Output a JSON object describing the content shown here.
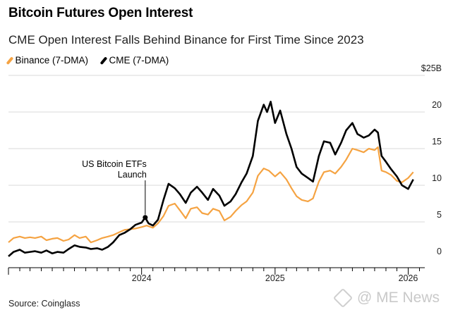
{
  "title": "Bitcoin Futures Open Interest",
  "subtitle": "CME Open Interest Falls Behind Binance for First Time Since 2023",
  "source": "Source: Coinglass",
  "watermark": "@ ME News",
  "colors": {
    "binance": "#F5A342",
    "cme": "#000000",
    "grid": "#d9d9d9"
  },
  "chart_data": {
    "type": "line",
    "title": "Bitcoin Futures Open Interest",
    "ylabel": "",
    "y_unit": "$25B",
    "ylim": [
      0,
      25
    ],
    "y_ticks": [
      0,
      5,
      10,
      15,
      20,
      25
    ],
    "y_tick_labels": [
      "0",
      "5",
      "10",
      "15",
      "20",
      "$25B"
    ],
    "xlim": [
      "2023-01-01",
      "2026-01-31"
    ],
    "x_ticks": [
      "2024-01-01",
      "2025-01-01",
      "2026-01-01"
    ],
    "x_tick_labels": [
      "2024",
      "2025",
      "2026"
    ],
    "grid": true,
    "legend_placement": "top-left",
    "annotation": {
      "text_lines": [
        "US Bitcoin ETFs",
        "Launch"
      ],
      "date": "2024-01-11",
      "value": 5.6
    },
    "series": [
      {
        "name": "Binance (7-DMA)",
        "color": "#F5A342",
        "points": [
          [
            "2023-01-01",
            2.2
          ],
          [
            "2023-01-15",
            2.8
          ],
          [
            "2023-02-01",
            3.0
          ],
          [
            "2023-02-15",
            2.8
          ],
          [
            "2023-03-01",
            2.9
          ],
          [
            "2023-03-15",
            2.8
          ],
          [
            "2023-04-01",
            3.0
          ],
          [
            "2023-04-15",
            2.5
          ],
          [
            "2023-05-01",
            2.7
          ],
          [
            "2023-05-15",
            2.8
          ],
          [
            "2023-06-01",
            2.4
          ],
          [
            "2023-06-15",
            2.6
          ],
          [
            "2023-07-01",
            3.2
          ],
          [
            "2023-07-15",
            2.8
          ],
          [
            "2023-08-01",
            3.0
          ],
          [
            "2023-08-15",
            2.2
          ],
          [
            "2023-09-01",
            2.5
          ],
          [
            "2023-09-15",
            2.8
          ],
          [
            "2023-10-01",
            3.0
          ],
          [
            "2023-10-15",
            3.2
          ],
          [
            "2023-11-01",
            3.6
          ],
          [
            "2023-11-15",
            3.9
          ],
          [
            "2023-12-01",
            4.0
          ],
          [
            "2023-12-15",
            4.1
          ],
          [
            "2024-01-01",
            4.3
          ],
          [
            "2024-01-15",
            4.5
          ],
          [
            "2024-02-01",
            4.2
          ],
          [
            "2024-02-15",
            4.8
          ],
          [
            "2024-03-01",
            5.8
          ],
          [
            "2024-03-15",
            7.2
          ],
          [
            "2024-04-01",
            7.5
          ],
          [
            "2024-04-15",
            6.6
          ],
          [
            "2024-05-01",
            5.5
          ],
          [
            "2024-05-15",
            6.8
          ],
          [
            "2024-06-01",
            7.0
          ],
          [
            "2024-06-15",
            6.2
          ],
          [
            "2024-07-01",
            6.0
          ],
          [
            "2024-07-15",
            6.8
          ],
          [
            "2024-08-01",
            6.5
          ],
          [
            "2024-08-15",
            5.2
          ],
          [
            "2024-09-01",
            5.7
          ],
          [
            "2024-09-15",
            6.5
          ],
          [
            "2024-10-01",
            7.3
          ],
          [
            "2024-10-15",
            7.8
          ],
          [
            "2024-11-01",
            9.0
          ],
          [
            "2024-11-15",
            11.3
          ],
          [
            "2024-12-01",
            12.3
          ],
          [
            "2024-12-15",
            12.0
          ],
          [
            "2025-01-01",
            11.2
          ],
          [
            "2025-01-15",
            11.8
          ],
          [
            "2025-02-01",
            10.8
          ],
          [
            "2025-02-15",
            9.6
          ],
          [
            "2025-03-01",
            8.5
          ],
          [
            "2025-03-15",
            8.0
          ],
          [
            "2025-04-01",
            7.8
          ],
          [
            "2025-04-15",
            8.2
          ],
          [
            "2025-05-01",
            10.5
          ],
          [
            "2025-05-15",
            11.8
          ],
          [
            "2025-06-01",
            12.0
          ],
          [
            "2025-06-15",
            11.6
          ],
          [
            "2025-07-01",
            12.5
          ],
          [
            "2025-07-15",
            13.5
          ],
          [
            "2025-08-01",
            15.0
          ],
          [
            "2025-08-15",
            14.8
          ],
          [
            "2025-09-01",
            14.5
          ],
          [
            "2025-09-15",
            15.0
          ],
          [
            "2025-10-01",
            14.8
          ],
          [
            "2025-10-10",
            15.2
          ],
          [
            "2025-10-20",
            12.0
          ],
          [
            "2025-11-01",
            11.8
          ],
          [
            "2025-11-15",
            11.4
          ],
          [
            "2025-12-01",
            10.6
          ],
          [
            "2025-12-15",
            10.4
          ],
          [
            "2026-01-01",
            11.0
          ],
          [
            "2026-01-15",
            11.8
          ]
        ]
      },
      {
        "name": "CME (7-DMA)",
        "color": "#000000",
        "points": [
          [
            "2023-01-01",
            0.3
          ],
          [
            "2023-01-15",
            0.9
          ],
          [
            "2023-02-01",
            1.2
          ],
          [
            "2023-02-15",
            0.8
          ],
          [
            "2023-03-01",
            0.9
          ],
          [
            "2023-03-15",
            1.0
          ],
          [
            "2023-04-01",
            0.8
          ],
          [
            "2023-04-15",
            1.1
          ],
          [
            "2023-05-01",
            0.7
          ],
          [
            "2023-05-15",
            0.9
          ],
          [
            "2023-06-01",
            0.8
          ],
          [
            "2023-06-15",
            1.3
          ],
          [
            "2023-07-01",
            1.8
          ],
          [
            "2023-07-15",
            1.6
          ],
          [
            "2023-08-01",
            1.5
          ],
          [
            "2023-08-15",
            1.3
          ],
          [
            "2023-09-01",
            1.4
          ],
          [
            "2023-09-15",
            1.2
          ],
          [
            "2023-10-01",
            1.6
          ],
          [
            "2023-10-15",
            2.2
          ],
          [
            "2023-11-01",
            3.2
          ],
          [
            "2023-11-15",
            3.5
          ],
          [
            "2023-12-01",
            4.0
          ],
          [
            "2023-12-15",
            4.6
          ],
          [
            "2024-01-01",
            4.9
          ],
          [
            "2024-01-11",
            5.6
          ],
          [
            "2024-01-20",
            4.8
          ],
          [
            "2024-02-01",
            4.5
          ],
          [
            "2024-02-15",
            5.3
          ],
          [
            "2024-03-01",
            8.0
          ],
          [
            "2024-03-15",
            10.2
          ],
          [
            "2024-04-01",
            9.6
          ],
          [
            "2024-04-15",
            8.8
          ],
          [
            "2024-05-01",
            7.6
          ],
          [
            "2024-05-15",
            9.0
          ],
          [
            "2024-06-01",
            9.8
          ],
          [
            "2024-06-15",
            9.0
          ],
          [
            "2024-07-01",
            8.0
          ],
          [
            "2024-07-15",
            9.5
          ],
          [
            "2024-08-01",
            8.6
          ],
          [
            "2024-08-15",
            7.2
          ],
          [
            "2024-09-01",
            7.8
          ],
          [
            "2024-09-15",
            8.8
          ],
          [
            "2024-10-01",
            10.4
          ],
          [
            "2024-10-15",
            11.6
          ],
          [
            "2024-11-01",
            14.0
          ],
          [
            "2024-11-15",
            18.8
          ],
          [
            "2024-12-01",
            21.0
          ],
          [
            "2024-12-10",
            20.0
          ],
          [
            "2024-12-20",
            21.4
          ],
          [
            "2025-01-01",
            18.5
          ],
          [
            "2025-01-15",
            20.2
          ],
          [
            "2025-02-01",
            17.0
          ],
          [
            "2025-02-15",
            15.0
          ],
          [
            "2025-03-01",
            12.5
          ],
          [
            "2025-03-15",
            11.6
          ],
          [
            "2025-04-01",
            11.0
          ],
          [
            "2025-04-15",
            10.5
          ],
          [
            "2025-05-01",
            14.0
          ],
          [
            "2025-05-15",
            16.0
          ],
          [
            "2025-06-01",
            15.8
          ],
          [
            "2025-06-15",
            14.2
          ],
          [
            "2025-07-01",
            15.8
          ],
          [
            "2025-07-15",
            17.5
          ],
          [
            "2025-08-01",
            18.5
          ],
          [
            "2025-08-15",
            17.0
          ],
          [
            "2025-09-01",
            16.5
          ],
          [
            "2025-09-15",
            16.8
          ],
          [
            "2025-10-01",
            17.6
          ],
          [
            "2025-10-10",
            17.2
          ],
          [
            "2025-10-20",
            14.0
          ],
          [
            "2025-11-01",
            13.2
          ],
          [
            "2025-11-15",
            12.2
          ],
          [
            "2025-12-01",
            11.2
          ],
          [
            "2025-12-15",
            10.0
          ],
          [
            "2026-01-01",
            9.5
          ],
          [
            "2026-01-15",
            10.8
          ]
        ]
      }
    ]
  }
}
